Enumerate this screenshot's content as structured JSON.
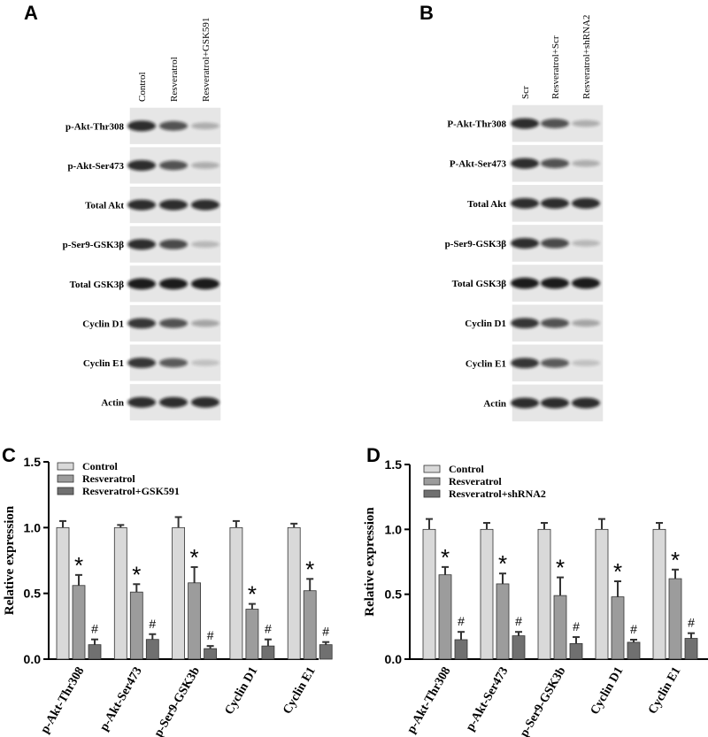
{
  "blots": [
    {
      "panel": "A",
      "lanes": [
        "Control",
        "Resveratrol",
        "Resveratrol+GSK591"
      ],
      "rows": [
        "p-Akt-Thr308",
        "p-Akt-Ser473",
        "Total Akt",
        "p-Ser9-GSK3β",
        "Total GSK3β",
        "Cyclin D1",
        "Cyclin E1",
        "Actin"
      ]
    },
    {
      "panel": "B",
      "lanes": [
        "Scr",
        "Resveratrol+Scr",
        "Resveratrol+shRNA2"
      ],
      "rows": [
        "P-Akt-Thr308",
        "P-Akt-Ser473",
        "Total Akt",
        "p-Ser9-GSK3β",
        "Total GSK3β",
        "Cyclin D1",
        "Cyclin E1",
        "Actin"
      ]
    }
  ],
  "chart_data": [
    {
      "type": "bar",
      "panel": "C",
      "y_label": "Relative expression",
      "categories": [
        "p-Akt-Thr308",
        "p-Akt-Ser473",
        "p-Ser9-GSK3b",
        "Cyclin D1",
        "Cyclin E1"
      ],
      "series": [
        {
          "name": "Control",
          "color": "#d9d9d9",
          "values": [
            1,
            1,
            1,
            1,
            1
          ],
          "errors": [
            0.05,
            0.02,
            0.08,
            0.05,
            0.03
          ]
        },
        {
          "name": "Resveratrol",
          "color": "#9c9c9c",
          "values": [
            0.56,
            0.51,
            0.58,
            0.38,
            0.52
          ],
          "errors": [
            0.08,
            0.06,
            0.12,
            0.04,
            0.09
          ],
          "annotations": [
            "*",
            "*",
            "*",
            "*",
            "*"
          ]
        },
        {
          "name": "Resveratrol+GSK591",
          "color": "#707070",
          "values": [
            0.11,
            0.15,
            0.08,
            0.1,
            0.11
          ],
          "errors": [
            0.04,
            0.04,
            0.02,
            0.05,
            0.02
          ],
          "annotations": [
            "#",
            "#",
            "#",
            "#",
            "#"
          ]
        }
      ],
      "ylim": [
        0,
        1.5
      ],
      "yticks": [
        {
          "value": 0,
          "label": "0.0"
        },
        0.5,
        {
          "value": 1,
          "label": "1.0"
        },
        1.5
      ],
      "legend": "top-left"
    },
    {
      "type": "bar",
      "panel": "D",
      "y_label": "Relative expression",
      "categories": [
        "p-Akt-Thr308",
        "p-Akt-Ser473",
        "p-Ser9-GSK3b",
        "Cyclin D1",
        "Cyclin E1"
      ],
      "series": [
        {
          "name": "Control",
          "color": "#d9d9d9",
          "values": [
            1,
            1,
            1,
            1,
            1
          ],
          "errors": [
            0.08,
            0.05,
            0.05,
            0.08,
            0.05
          ]
        },
        {
          "name": "Resveratrol",
          "color": "#9c9c9c",
          "values": [
            0.65,
            0.58,
            0.49,
            0.48,
            0.62
          ],
          "errors": [
            0.06,
            0.08,
            0.14,
            0.12,
            0.07
          ],
          "annotations": [
            "*",
            "*",
            "*",
            "*",
            "*"
          ]
        },
        {
          "name": "Resveratrol+shRNA2",
          "color": "#707070",
          "values": [
            0.15,
            0.18,
            0.12,
            0.13,
            0.16
          ],
          "errors": [
            0.06,
            0.03,
            0.05,
            0.02,
            0.04
          ],
          "annotations": [
            "#",
            "#",
            "#",
            "#",
            "#"
          ]
        }
      ],
      "ylim": [
        0,
        1.5
      ],
      "yticks": [
        {
          "value": 0,
          "label": "0.0"
        },
        0.5,
        {
          "value": 1,
          "label": "1.0"
        },
        1.5
      ],
      "legend": "top-left"
    }
  ]
}
